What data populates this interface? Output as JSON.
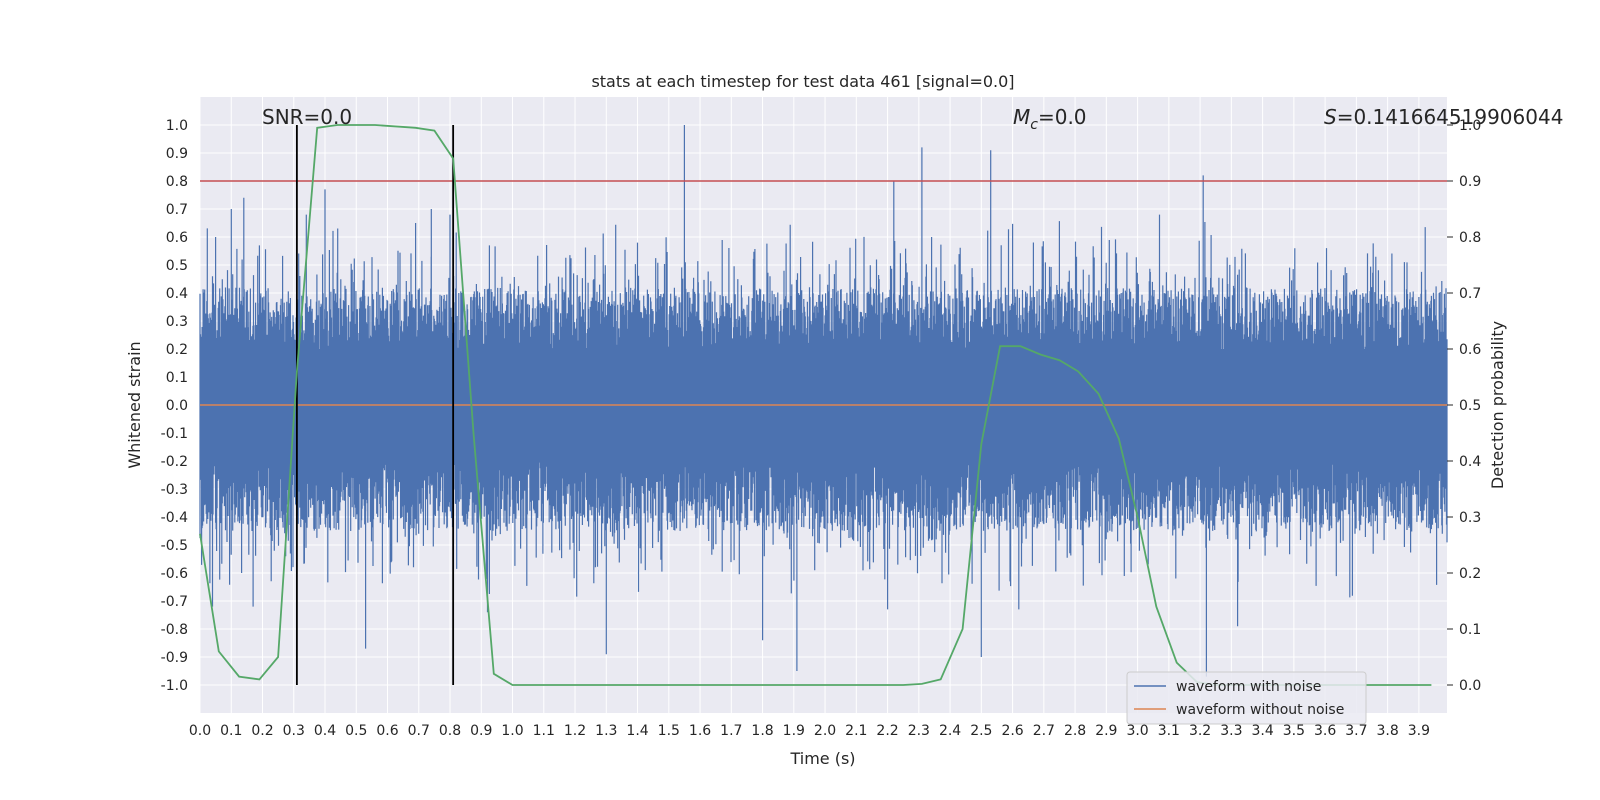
{
  "chart_data": {
    "type": "line",
    "title": "stats at each timestep for test data 461 [signal=0.0]",
    "xlabel": "Time (s)",
    "ylabel": "Whitened strain",
    "y2label": "Detection probability",
    "xlim": [
      0.0,
      3.99
    ],
    "ylim": [
      -1.1,
      1.1
    ],
    "y2lim": [
      -0.05,
      1.05
    ],
    "xticks": [
      "0.0",
      "0.1",
      "0.2",
      "0.3",
      "0.4",
      "0.5",
      "0.6",
      "0.7",
      "0.8",
      "0.9",
      "1.0",
      "1.1",
      "1.2",
      "1.3",
      "1.4",
      "1.5",
      "1.6",
      "1.7",
      "1.8",
      "1.9",
      "2.0",
      "2.1",
      "2.2",
      "2.3",
      "2.4",
      "2.5",
      "2.6",
      "2.7",
      "2.8",
      "2.9",
      "3.0",
      "3.1",
      "3.2",
      "3.3",
      "3.4",
      "3.5",
      "3.6",
      "3.7",
      "3.8",
      "3.9"
    ],
    "yticks": [
      "1.0",
      "0.9",
      "0.8",
      "0.7",
      "0.6",
      "0.5",
      "0.4",
      "0.3",
      "0.2",
      "0.1",
      "0.0",
      "-0.1",
      "-0.2",
      "-0.3",
      "-0.4",
      "-0.5",
      "-0.6",
      "-0.7",
      "-0.8",
      "-0.9",
      "-1.0"
    ],
    "y2ticks": [
      "1.0",
      "0.9",
      "0.8",
      "0.7",
      "0.6",
      "0.5",
      "0.4",
      "0.3",
      "0.2",
      "0.1",
      "0.0"
    ],
    "annotations": {
      "snr": "SNR=0.0",
      "mc_symbol": "M",
      "mc_sub": "c",
      "mc_value": "=0.0",
      "s_symbol": "S",
      "s_value": "=0.141664519906044"
    },
    "legend": {
      "position": "lower-right",
      "entries": [
        "waveform with noise",
        "waveform without noise"
      ]
    },
    "threshold_y2": 0.9,
    "vertical_lines_x": [
      0.31,
      0.81
    ],
    "noise_series": {
      "name": "waveform with noise",
      "color": "#4c72b0",
      "spikes": [
        [
          0.05,
          0.6
        ],
        [
          0.1,
          0.7
        ],
        [
          0.14,
          0.74
        ],
        [
          0.19,
          0.57
        ],
        [
          0.34,
          0.68
        ],
        [
          0.4,
          0.77
        ],
        [
          0.69,
          0.65
        ],
        [
          0.74,
          0.7
        ],
        [
          0.8,
          0.68
        ],
        [
          1.55,
          1.0
        ],
        [
          2.22,
          0.8
        ],
        [
          2.31,
          0.92
        ],
        [
          2.53,
          0.91
        ],
        [
          3.21,
          0.82
        ],
        [
          3.07,
          0.68
        ],
        [
          0.04,
          -0.72
        ],
        [
          0.53,
          -0.87
        ],
        [
          1.3,
          -0.89
        ],
        [
          1.8,
          -0.84
        ],
        [
          1.91,
          -0.95
        ],
        [
          2.5,
          -0.9
        ],
        [
          2.62,
          -0.73
        ],
        [
          2.2,
          -0.73
        ],
        [
          3.22,
          -0.97
        ],
        [
          3.32,
          -0.79
        ],
        [
          0.17,
          -0.72
        ],
        [
          0.92,
          -0.74
        ]
      ],
      "envelope_positive": 0.42,
      "envelope_negative": -0.45
    },
    "clean_series": {
      "name": "waveform without noise",
      "color": "#dd8452",
      "value": 0.0
    },
    "probability_series": {
      "name": "detection probability",
      "color": "#55a868",
      "x": [
        0.0,
        0.06,
        0.125,
        0.19,
        0.25,
        0.31,
        0.375,
        0.44,
        0.5,
        0.56,
        0.69,
        0.75,
        0.81,
        0.875,
        0.94,
        1.0,
        1.25,
        1.5,
        1.75,
        2.0,
        2.25,
        2.31,
        2.37,
        2.44,
        2.5,
        2.56,
        2.625,
        2.69,
        2.75,
        2.81,
        2.875,
        2.94,
        3.0,
        3.06,
        3.125,
        3.19,
        3.25,
        3.5,
        3.75,
        3.94
      ],
      "y": [
        0.27,
        0.06,
        0.015,
        0.01,
        0.05,
        0.56,
        0.995,
        1.0,
        1.0,
        1.0,
        0.995,
        0.99,
        0.94,
        0.45,
        0.02,
        0.0,
        0.0,
        0.0,
        0.0,
        0.0,
        0.0,
        0.002,
        0.01,
        0.1,
        0.43,
        0.605,
        0.605,
        0.59,
        0.58,
        0.56,
        0.52,
        0.44,
        0.3,
        0.14,
        0.04,
        0.005,
        0.0,
        0.0,
        0.0,
        0.0
      ]
    },
    "colors": {
      "background": "#eaeaf2",
      "grid": "#ffffff",
      "threshold": "#c44e52",
      "vertical_lines": "#000000"
    }
  }
}
